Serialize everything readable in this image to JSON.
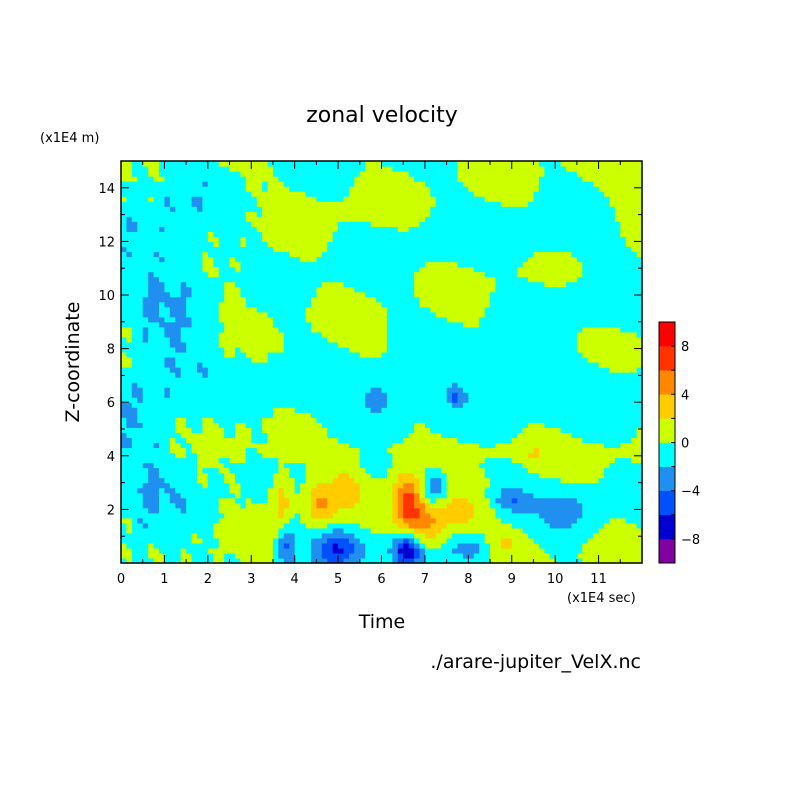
{
  "chart_data": {
    "type": "heatmap",
    "title": "zonal velocity",
    "xlabel": "Time",
    "ylabel": "Z-coordinate",
    "x_unit": "(x1E4 sec)",
    "y_unit": "(x1E4 m)",
    "footer": "./arare-jupiter_VelX.nc",
    "xlim": [
      0,
      12
    ],
    "ylim": [
      0,
      15
    ],
    "x_ticks": [
      0,
      1,
      2,
      3,
      4,
      5,
      6,
      7,
      8,
      9,
      10,
      11
    ],
    "y_ticks": [
      2,
      4,
      6,
      8,
      10,
      12,
      14
    ],
    "x_tick_labels": [
      "0",
      "1",
      "2",
      "3",
      "4",
      "5",
      "6",
      "7",
      "8",
      "9",
      "10",
      "11"
    ],
    "y_tick_labels": [
      "2",
      "4",
      "6",
      "8",
      "10",
      "12",
      "14"
    ],
    "colorbar": {
      "levels": [
        -10,
        -8,
        -6,
        -4,
        -2,
        0,
        2,
        4,
        6,
        8,
        10
      ],
      "colors": [
        "#8000a0",
        "#0000d0",
        "#0050ff",
        "#2090f0",
        "#00ffff",
        "#ccff00",
        "#ffcc00",
        "#ff8800",
        "#ff3300",
        "#ff0000",
        "#ffb0b0"
      ],
      "tick_values": [
        8,
        4,
        0,
        -4,
        -8
      ],
      "tick_labels": [
        "8",
        "4",
        "0",
        "−4",
        "−8"
      ]
    },
    "features": [
      {
        "x": 0.6,
        "z": 5,
        "u": -1.5,
        "sx": 0.7,
        "sz": 7
      },
      {
        "x": 1.5,
        "z": 11,
        "u": -1.2,
        "sx": 0.5,
        "sz": 3
      },
      {
        "x": 5.5,
        "z": 6.5,
        "u": -1.2,
        "sx": 2.2,
        "sz": 0.7
      },
      {
        "x": 9.5,
        "z": 6.5,
        "u": -1.3,
        "sx": 2.5,
        "sz": 0.8
      },
      {
        "x": 11,
        "z": 9.8,
        "u": -1.0,
        "sx": 1.6,
        "sz": 0.7
      },
      {
        "x": 8.5,
        "z": 12,
        "u": -0.9,
        "sx": 2.0,
        "sz": 0.6
      },
      {
        "x": 7.0,
        "z": 4.2,
        "u": 0.8,
        "sx": 3.5,
        "sz": 0.25
      },
      {
        "x": 9.5,
        "z": 4.1,
        "u": 1.6,
        "sx": 0.15,
        "sz": 0.12
      },
      {
        "x": 11.0,
        "z": 4.0,
        "u": 1.6,
        "sx": 0.15,
        "sz": 0.12
      },
      {
        "x": 3.7,
        "z": 2.2,
        "u": 3.5,
        "sx": 0.15,
        "sz": 0.8
      },
      {
        "x": 4.6,
        "z": 2.2,
        "u": 3.8,
        "sx": 0.2,
        "sz": 0.6
      },
      {
        "x": 5.2,
        "z": 2.8,
        "u": 2.5,
        "sx": 0.25,
        "sz": 0.6
      },
      {
        "x": 6.6,
        "z": 2.3,
        "u": 6.5,
        "sx": 0.25,
        "sz": 0.8
      },
      {
        "x": 7.0,
        "z": 1.4,
        "u": 4.5,
        "sx": 0.3,
        "sz": 0.6
      },
      {
        "x": 7.8,
        "z": 1.8,
        "u": 2.5,
        "sx": 0.45,
        "sz": 0.6
      },
      {
        "x": 8.8,
        "z": 0.8,
        "u": 2.3,
        "sx": 0.4,
        "sz": 0.35
      },
      {
        "x": 3.8,
        "z": 0.7,
        "u": -4.5,
        "sx": 0.15,
        "sz": 0.6
      },
      {
        "x": 5.0,
        "z": 0.6,
        "u": -5.5,
        "sx": 0.4,
        "sz": 0.5
      },
      {
        "x": 6.6,
        "z": 0.5,
        "u": -8.0,
        "sx": 0.25,
        "sz": 0.5
      },
      {
        "x": 7.2,
        "z": 2.8,
        "u": -4.5,
        "sx": 0.2,
        "sz": 0.4
      },
      {
        "x": 8.1,
        "z": 0.6,
        "u": -3.5,
        "sx": 0.4,
        "sz": 0.4
      },
      {
        "x": 9.0,
        "z": 2.4,
        "u": -3.5,
        "sx": 0.3,
        "sz": 0.3
      },
      {
        "x": 10.3,
        "z": 2.0,
        "u": -2.8,
        "sx": 0.5,
        "sz": 0.6
      },
      {
        "x": 5.9,
        "z": 6.0,
        "u": -3.0,
        "sx": 0.15,
        "sz": 0.3
      },
      {
        "x": 7.7,
        "z": 6.2,
        "u": -3.0,
        "sx": 0.12,
        "sz": 0.2
      }
    ]
  }
}
